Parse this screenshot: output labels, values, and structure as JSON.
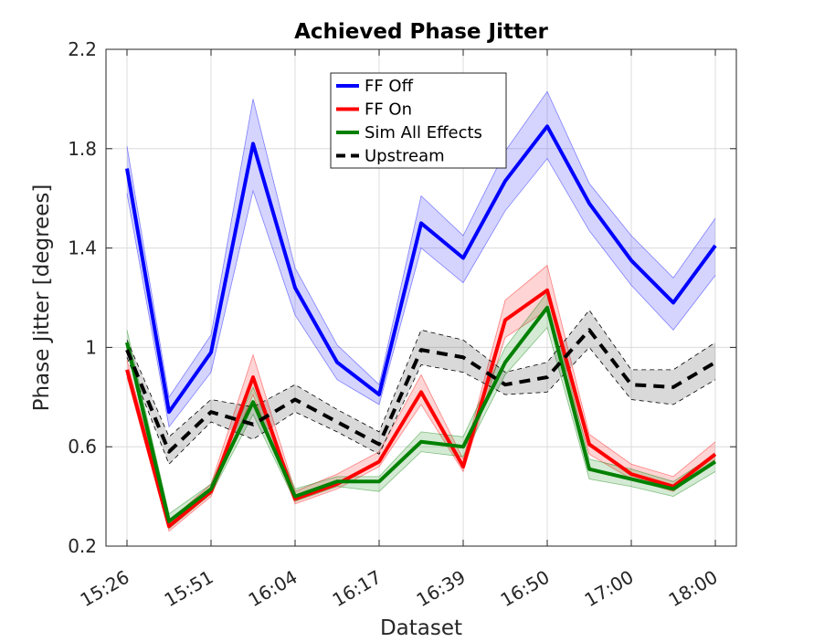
{
  "chart_data": {
    "type": "line",
    "title": "Achieved Phase Jitter",
    "xlabel": "Dataset",
    "ylabel": "Phase Jitter [degrees]",
    "ylim": [
      0.2,
      2.2
    ],
    "yticks": [
      "0.2",
      "0.6",
      "1",
      "1.4",
      "1.8",
      "2.2"
    ],
    "ytick_values": [
      0.2,
      0.6,
      1.0,
      1.4,
      1.8,
      2.2
    ],
    "xlim": [
      0.5,
      15.5
    ],
    "x": [
      1,
      2,
      3,
      4,
      5,
      6,
      7,
      8,
      9,
      10,
      11,
      12,
      13,
      14,
      15
    ],
    "xticks": [
      1,
      3,
      5,
      7,
      9,
      11,
      13,
      15
    ],
    "xtick_labels": [
      "15:26",
      "15:51",
      "16:04",
      "16:17",
      "16:39",
      "16:50",
      "17:00",
      "18:00"
    ],
    "grid": true,
    "legend_position": "top-center",
    "series": [
      {
        "name": "FF Off",
        "color": "#0000ff",
        "dash": "solid",
        "values": [
          1.72,
          0.74,
          0.98,
          1.82,
          1.24,
          0.94,
          0.81,
          1.5,
          1.36,
          1.67,
          1.89,
          1.58,
          1.35,
          1.18,
          1.41
        ],
        "lower": [
          1.62,
          0.68,
          0.9,
          1.63,
          1.13,
          0.87,
          0.77,
          1.4,
          1.26,
          1.55,
          1.76,
          1.47,
          1.25,
          1.07,
          1.29
        ],
        "upper": [
          1.81,
          0.8,
          1.05,
          2.0,
          1.32,
          1.01,
          0.85,
          1.61,
          1.45,
          1.79,
          2.03,
          1.66,
          1.45,
          1.28,
          1.52
        ]
      },
      {
        "name": "FF On",
        "color": "#ff0000",
        "dash": "solid",
        "values": [
          0.91,
          0.28,
          0.42,
          0.88,
          0.39,
          0.45,
          0.54,
          0.82,
          0.52,
          1.11,
          1.23,
          0.61,
          0.49,
          0.44,
          0.57
        ],
        "lower": [
          0.88,
          0.26,
          0.4,
          0.81,
          0.37,
          0.43,
          0.52,
          0.77,
          0.5,
          1.04,
          1.15,
          0.57,
          0.47,
          0.42,
          0.55
        ],
        "upper": [
          0.95,
          0.3,
          0.45,
          0.97,
          0.42,
          0.49,
          0.58,
          0.89,
          0.55,
          1.19,
          1.33,
          0.65,
          0.53,
          0.48,
          0.62
        ]
      },
      {
        "name": "Sim All Effects",
        "color": "#008000",
        "dash": "solid",
        "values": [
          1.02,
          0.3,
          0.43,
          0.78,
          0.4,
          0.46,
          0.46,
          0.62,
          0.6,
          0.94,
          1.16,
          0.51,
          0.47,
          0.43,
          0.54
        ],
        "lower": [
          0.99,
          0.27,
          0.41,
          0.73,
          0.38,
          0.44,
          0.42,
          0.58,
          0.56,
          0.89,
          1.08,
          0.47,
          0.44,
          0.4,
          0.5
        ],
        "upper": [
          1.07,
          0.33,
          0.45,
          0.84,
          0.43,
          0.48,
          0.48,
          0.66,
          0.64,
          1.0,
          1.22,
          0.55,
          0.51,
          0.46,
          0.57
        ]
      },
      {
        "name": "Upstream",
        "color": "#000000",
        "dash": "dashed",
        "values": [
          0.99,
          0.58,
          0.74,
          0.69,
          0.79,
          0.7,
          0.61,
          0.99,
          0.96,
          0.85,
          0.88,
          1.07,
          0.85,
          0.84,
          0.94
        ],
        "lower": [
          0.96,
          0.53,
          0.7,
          0.63,
          0.74,
          0.66,
          0.57,
          0.93,
          0.9,
          0.81,
          0.82,
          1.0,
          0.79,
          0.77,
          0.87
        ],
        "upper": [
          1.03,
          0.64,
          0.79,
          0.76,
          0.85,
          0.75,
          0.66,
          1.07,
          1.03,
          0.9,
          0.94,
          1.15,
          0.91,
          0.91,
          1.02
        ]
      }
    ]
  }
}
